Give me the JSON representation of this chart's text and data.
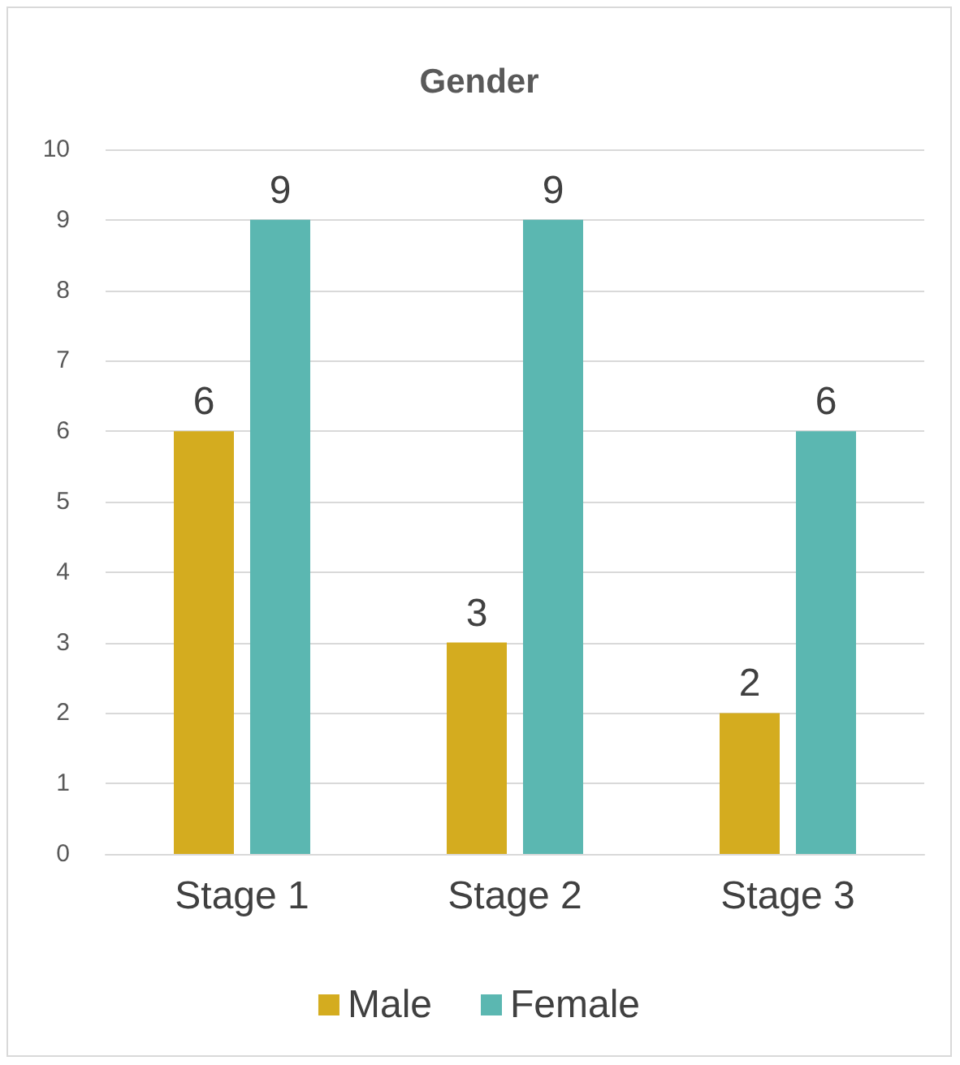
{
  "chart_data": {
    "type": "bar",
    "title": "Gender",
    "categories": [
      "Stage 1",
      "Stage 2",
      "Stage 3"
    ],
    "series": [
      {
        "name": "Male",
        "color": "#d4ac1f",
        "values": [
          6,
          3,
          2
        ]
      },
      {
        "name": "Female",
        "color": "#5bb7b1",
        "values": [
          9,
          9,
          6
        ]
      }
    ],
    "ylim": [
      0,
      10
    ],
    "yticks": [
      0,
      1,
      2,
      3,
      4,
      5,
      6,
      7,
      8,
      9,
      10
    ],
    "grid": "y",
    "legend": "bottom",
    "data_labels": true
  }
}
